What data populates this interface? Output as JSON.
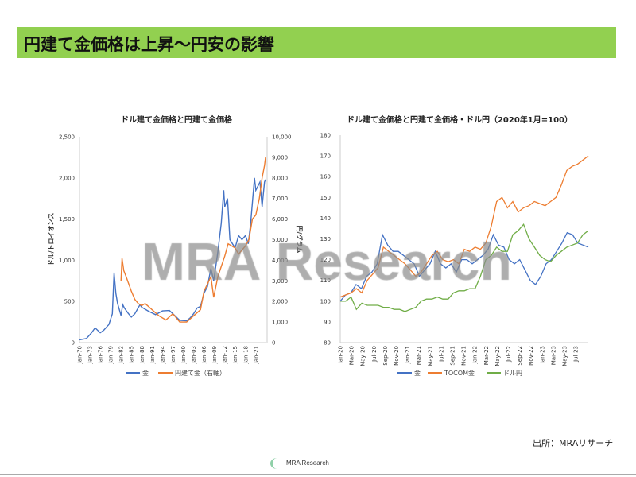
{
  "title": "円建て金価格は上昇～円安の影響",
  "watermark": "MRA Research",
  "source": "出所：MRAリサーチ",
  "logo_text": "MRA Research",
  "colors": {
    "title_bg": "#92d050",
    "gold": "#4472c4",
    "yen_gold": "#ed7d31",
    "usdjpy": "#70ad47"
  },
  "chart_data": [
    {
      "type": "line",
      "title": "ドル建て金価格と円建て金価格",
      "ylabel": "ドル/トロイオンス",
      "y2label": "円/グラム",
      "ylim": [
        0,
        2500
      ],
      "y2lim": [
        0,
        10000
      ],
      "yticks": [
        "0",
        "500",
        "1,000",
        "1,500",
        "2,000",
        "2,500"
      ],
      "y2ticks": [
        "0",
        "1,000",
        "2,000",
        "3,000",
        "4,000",
        "5,000",
        "6,000",
        "7,000",
        "8,000",
        "9,000",
        "10,000"
      ],
      "xticks": [
        "Jan-70",
        "Jan-73",
        "Jan-76",
        "Jan-79",
        "Jan-82",
        "Jan-85",
        "Jan-88",
        "Jan-91",
        "Jan-94",
        "Jan-97",
        "Jan-00",
        "Jan-03",
        "Jan-06",
        "Jan-09",
        "Jan-12",
        "Jan-15",
        "Jan-18",
        "Jan-21"
      ],
      "xlim": [
        1970,
        2023.8
      ],
      "series": [
        {
          "name": "金",
          "axis": "left",
          "x": [
            1970,
            1972,
            1973.5,
            1974.5,
            1976,
            1977,
            1978.5,
            1979.5,
            1980,
            1980.5,
            1981,
            1982,
            1982.5,
            1983,
            1984,
            1985,
            1986,
            1987.5,
            1988,
            1990,
            1992,
            1994,
            1996,
            1997.5,
            1999,
            2001,
            2002,
            2003,
            2004,
            2005,
            2006,
            2007,
            2008,
            2008.8,
            2009.5,
            2010,
            2011,
            2011.7,
            2012,
            2012.8,
            2013.5,
            2015,
            2016,
            2017,
            2018,
            2018.8,
            2019.5,
            2020.6,
            2021,
            2022.2,
            2022.8,
            2023.5,
            2023.8
          ],
          "y": [
            35,
            50,
            120,
            180,
            120,
            150,
            220,
            350,
            850,
            600,
            480,
            330,
            460,
            420,
            360,
            310,
            350,
            460,
            430,
            380,
            340,
            385,
            390,
            330,
            270,
            265,
            300,
            350,
            420,
            440,
            600,
            680,
            900,
            750,
            950,
            1100,
            1450,
            1850,
            1650,
            1750,
            1250,
            1150,
            1300,
            1250,
            1300,
            1200,
            1450,
            2000,
            1850,
            1950,
            1650,
            1950,
            1980
          ]
        },
        {
          "name": "円建て金（右軸）",
          "axis": "right",
          "x": [
            1982,
            1982.3,
            1982.8,
            1983.5,
            1985,
            1986,
            1987,
            1988,
            1989,
            1991,
            1993,
            1995,
            1997,
            1999,
            2001,
            2003,
            2005,
            2006,
            2008,
            2008.8,
            2010,
            2012,
            2013,
            2015,
            2016,
            2018,
            2019,
            2020,
            2021,
            2022,
            2022.8,
            2023.5,
            2023.8
          ],
          "y": [
            3000,
            4100,
            3500,
            3200,
            2500,
            2100,
            1900,
            1800,
            1900,
            1600,
            1300,
            1100,
            1400,
            1000,
            1000,
            1300,
            1600,
            2500,
            3200,
            2200,
            3200,
            4200,
            4800,
            4600,
            4300,
            4700,
            5000,
            6000,
            6200,
            7000,
            8000,
            8600,
            9000
          ]
        }
      ]
    },
    {
      "type": "line",
      "title": "ドル建て金価格と円建て金価格・ドル円（2020年1月=100）",
      "ylim": [
        80,
        180
      ],
      "yticks": [
        "80",
        "90",
        "100",
        "110",
        "120",
        "130",
        "140",
        "150",
        "160",
        "170",
        "180"
      ],
      "xticks": [
        "Jan-20",
        "Mar-20",
        "May-20",
        "Jul-20",
        "Sep-20",
        "Nov-20",
        "Jan-21",
        "Mar-21",
        "May-21",
        "Jul-21",
        "Sep-21",
        "Nov-21",
        "Jan-22",
        "Mar-22",
        "May-22",
        "Jul-22",
        "Sep-22",
        "Nov-22",
        "Jan-23",
        "Mar-23",
        "May-23",
        "Jul-23"
      ],
      "x_unit": "months since Jan-20",
      "series": [
        {
          "name": "金",
          "y": [
            100,
            103,
            104,
            108,
            106,
            112,
            114,
            118,
            132,
            127,
            124,
            124,
            122,
            120,
            118,
            112,
            115,
            118,
            124,
            118,
            116,
            118,
            114,
            120,
            120,
            118,
            120,
            122,
            125,
            132,
            127,
            126,
            120,
            118,
            120,
            115,
            110,
            108,
            112,
            118,
            120,
            124,
            128,
            133,
            132,
            128,
            127,
            126
          ]
        },
        {
          "name": "TOCOM金",
          "y": [
            102,
            103,
            104,
            106,
            104,
            110,
            113,
            116,
            126,
            124,
            122,
            120,
            118,
            115,
            112,
            114,
            118,
            122,
            124,
            120,
            119,
            120,
            118,
            125,
            124,
            126,
            125,
            128,
            136,
            148,
            150,
            145,
            148,
            143,
            145,
            146,
            148,
            147,
            146,
            148,
            150,
            156,
            163,
            165,
            166,
            168,
            170
          ]
        },
        {
          "name": "ドル円",
          "y": [
            100,
            100,
            102,
            96,
            99,
            98,
            98,
            98,
            97,
            97,
            96,
            96,
            95,
            96,
            97,
            100,
            101,
            101,
            102,
            101,
            101,
            104,
            105,
            105,
            106,
            106,
            112,
            120,
            122,
            126,
            124,
            124,
            132,
            134,
            137,
            130,
            126,
            122,
            120,
            119,
            122,
            124,
            126,
            127,
            128,
            132,
            134
          ]
        }
      ]
    }
  ]
}
